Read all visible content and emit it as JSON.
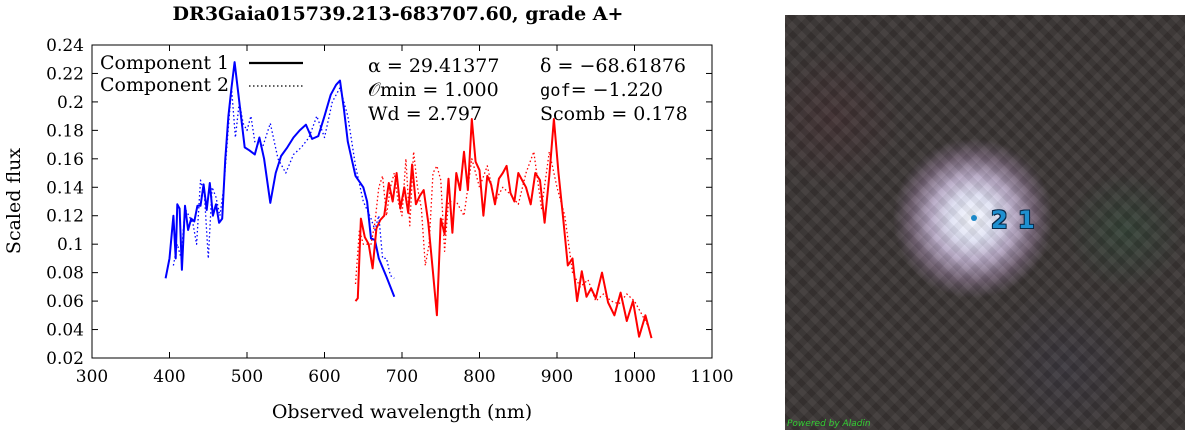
{
  "title": "DR3Gaia015739.213-683707.60, grade A+",
  "annotations": {
    "alpha": "α = 29.41377",
    "delta": "δ = −68.61876",
    "omin": "𝒪min = 1.000",
    "gof_label": "gof",
    "gof_value": "= −1.220",
    "wd": "Wd = 2.797",
    "scomb": "Scomb = 0.178"
  },
  "sky_image": {
    "source_labels": [
      "2",
      "1"
    ],
    "credit": "Powered by Aladin"
  },
  "colors": {
    "red": "#ff0000",
    "blue": "#0000ff"
  },
  "chart_data": {
    "type": "line",
    "title": "DR3Gaia015739.213-683707.60, grade A+",
    "xlabel": "Observed wavelength (nm)",
    "ylabel": "Scaled flux",
    "xlim": [
      300,
      1100
    ],
    "ylim": [
      0.02,
      0.24
    ],
    "xticks": [
      300,
      400,
      500,
      600,
      700,
      800,
      900,
      1000,
      1100
    ],
    "yticks": [
      0.02,
      0.04,
      0.06,
      0.08,
      0.1,
      0.12,
      0.14,
      0.16,
      0.18,
      0.2,
      0.22,
      0.24
    ],
    "grid": false,
    "legend": "top-left",
    "series": [
      {
        "name": "Component 1",
        "style": "solid",
        "color": "#0000ff",
        "x": [
          395,
          400,
          405,
          408,
          410,
          413,
          416,
          420,
          424,
          428,
          432,
          436,
          440,
          444,
          448,
          452,
          456,
          460,
          464,
          468,
          472,
          476,
          480,
          484,
          490,
          497,
          503,
          510,
          516,
          522,
          530,
          537,
          544,
          552,
          560,
          568,
          576,
          584,
          592,
          600,
          608,
          615,
          620,
          625,
          630,
          640,
          650,
          655,
          660,
          665,
          670,
          680,
          690
        ],
        "y": [
          0.076,
          0.09,
          0.12,
          0.09,
          0.128,
          0.125,
          0.082,
          0.127,
          0.11,
          0.118,
          0.116,
          0.127,
          0.127,
          0.142,
          0.124,
          0.143,
          0.12,
          0.128,
          0.115,
          0.118,
          0.16,
          0.19,
          0.21,
          0.228,
          0.2,
          0.168,
          0.166,
          0.163,
          0.175,
          0.16,
          0.129,
          0.15,
          0.162,
          0.168,
          0.175,
          0.18,
          0.184,
          0.174,
          0.176,
          0.19,
          0.205,
          0.212,
          0.215,
          0.195,
          0.172,
          0.148,
          0.14,
          0.13,
          0.104,
          0.103,
          0.09,
          0.077,
          0.063
        ]
      },
      {
        "name": "Component 1",
        "style": "solid",
        "color": "#ff0000",
        "x": [
          640,
          643,
          647,
          652,
          657,
          662,
          667,
          672,
          677,
          683,
          688,
          693,
          698,
          703,
          708,
          713,
          718,
          723,
          728,
          734,
          740,
          745,
          750,
          755,
          760,
          765,
          770,
          775,
          780,
          785,
          790,
          795,
          800,
          805,
          810,
          815,
          820,
          825,
          830,
          835,
          840,
          845,
          850,
          855,
          860,
          866,
          872,
          878,
          884,
          890,
          896,
          902,
          908,
          914,
          920,
          926,
          932,
          938,
          944,
          950,
          958,
          966,
          974,
          982,
          990,
          998,
          1006,
          1014,
          1022
        ],
        "y": [
          0.06,
          0.062,
          0.118,
          0.105,
          0.1,
          0.083,
          0.111,
          0.117,
          0.12,
          0.143,
          0.13,
          0.15,
          0.125,
          0.14,
          0.122,
          0.156,
          0.128,
          0.134,
          0.138,
          0.115,
          0.08,
          0.05,
          0.118,
          0.107,
          0.146,
          0.108,
          0.15,
          0.138,
          0.165,
          0.138,
          0.188,
          0.158,
          0.152,
          0.12,
          0.148,
          0.142,
          0.128,
          0.146,
          0.15,
          0.155,
          0.136,
          0.13,
          0.15,
          0.145,
          0.14,
          0.128,
          0.15,
          0.145,
          0.115,
          0.148,
          0.188,
          0.15,
          0.118,
          0.085,
          0.09,
          0.06,
          0.081,
          0.063,
          0.069,
          0.062,
          0.08,
          0.059,
          0.05,
          0.066,
          0.046,
          0.06,
          0.035,
          0.05,
          0.034
        ]
      },
      {
        "name": "Component 2",
        "style": "dotted",
        "color": "#0000ff",
        "x": [
          405,
          410,
          415,
          420,
          425,
          430,
          435,
          440,
          445,
          450,
          455,
          460,
          465,
          470,
          475,
          480,
          485,
          490,
          495,
          500,
          505,
          510,
          515,
          520,
          530,
          540,
          550,
          560,
          570,
          580,
          590,
          600,
          610,
          620,
          630,
          640,
          650,
          660,
          665,
          670,
          675,
          680,
          685,
          690
        ],
        "y": [
          0.085,
          0.1,
          0.09,
          0.125,
          0.12,
          0.115,
          0.1,
          0.145,
          0.135,
          0.09,
          0.14,
          0.133,
          0.12,
          0.14,
          0.175,
          0.21,
          0.175,
          0.2,
          0.185,
          0.18,
          0.19,
          0.172,
          0.17,
          0.168,
          0.185,
          0.16,
          0.15,
          0.163,
          0.168,
          0.175,
          0.19,
          0.175,
          0.2,
          0.21,
          0.19,
          0.155,
          0.13,
          0.118,
          0.11,
          0.12,
          0.09,
          0.09,
          0.078,
          0.076
        ]
      },
      {
        "name": "Component 2",
        "style": "dotted",
        "color": "#ff0000",
        "x": [
          640,
          645,
          650,
          655,
          660,
          665,
          670,
          675,
          680,
          685,
          690,
          695,
          700,
          705,
          710,
          715,
          720,
          725,
          730,
          735,
          740,
          745,
          750,
          755,
          760,
          765,
          770,
          780,
          790,
          800,
          810,
          820,
          830,
          840,
          850,
          860,
          870,
          880,
          890,
          900,
          910,
          920,
          930,
          940,
          950,
          960,
          970,
          980,
          990,
          1000,
          1010,
          1020
        ],
        "y": [
          0.072,
          0.11,
          0.1,
          0.1,
          0.1,
          0.115,
          0.14,
          0.148,
          0.12,
          0.14,
          0.15,
          0.13,
          0.12,
          0.16,
          0.113,
          0.165,
          0.14,
          0.125,
          0.085,
          0.1,
          0.15,
          0.155,
          0.145,
          0.095,
          0.13,
          0.13,
          0.13,
          0.12,
          0.16,
          0.14,
          0.155,
          0.13,
          0.14,
          0.135,
          0.128,
          0.15,
          0.165,
          0.125,
          0.165,
          0.14,
          0.12,
          0.08,
          0.07,
          0.075,
          0.06,
          0.065,
          0.06,
          0.058,
          0.065,
          0.06,
          0.05,
          0.04
        ]
      }
    ]
  }
}
